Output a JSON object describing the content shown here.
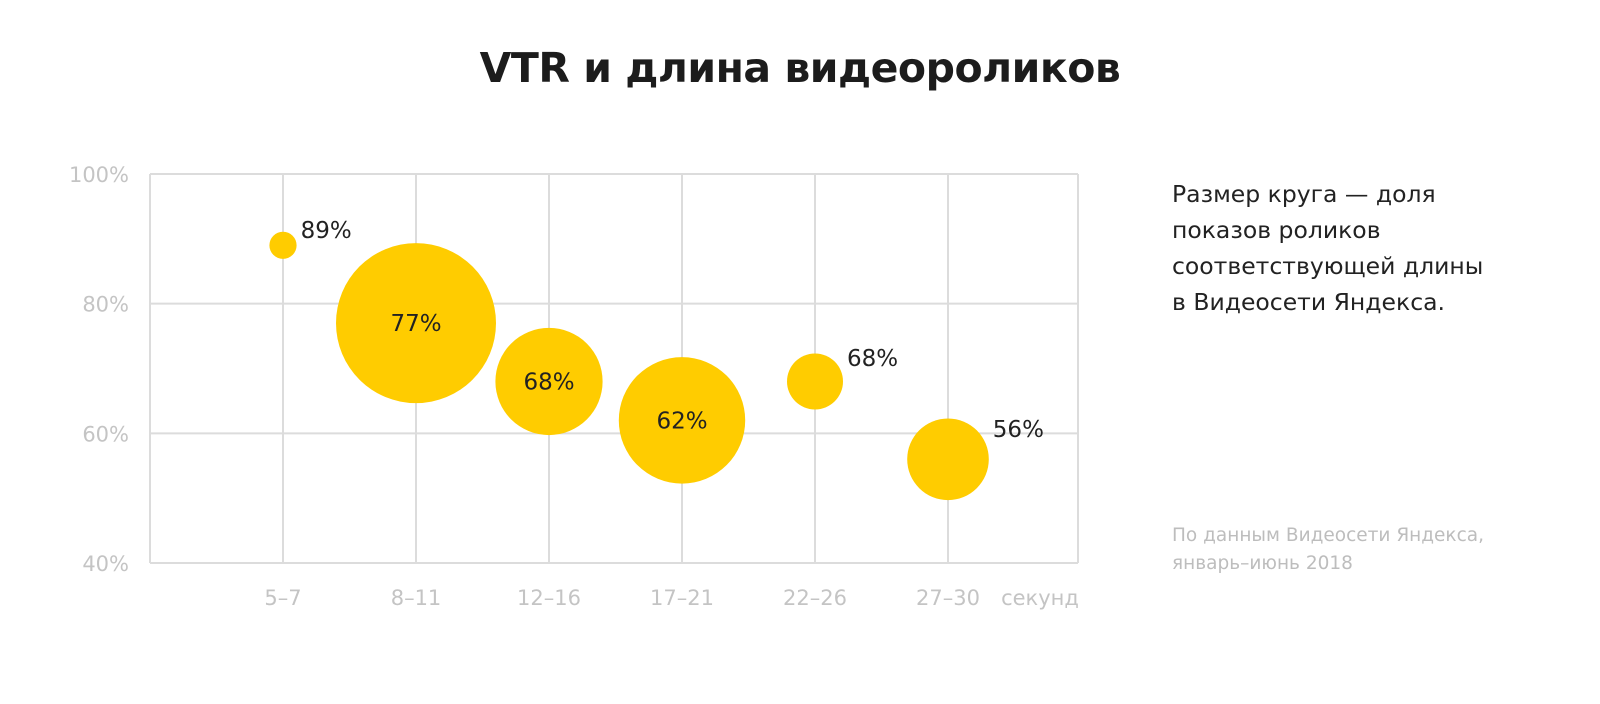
{
  "chart_data": {
    "type": "scatter",
    "title": "VTR и длина видеороликов",
    "categories": [
      "5–7",
      "8–11",
      "12–16",
      "17–21",
      "22–26",
      "27–30"
    ],
    "x_unit_label": "секунд",
    "values": [
      89,
      77,
      68,
      62,
      68,
      56
    ],
    "data_labels": [
      "89%",
      "77%",
      "68%",
      "62%",
      "68%",
      "56%"
    ],
    "bubble_size_relative": [
      0.17,
      1.0,
      0.67,
      0.79,
      0.35,
      0.51
    ],
    "ylim": [
      40,
      100
    ],
    "yticks": [
      40,
      60,
      80,
      100
    ],
    "ytick_labels": [
      "40%",
      "60%",
      "80%",
      "100%"
    ],
    "grid": true,
    "color": "#FFCC00"
  },
  "note": {
    "lines": [
      "Размер круга — доля",
      "показов роликов",
      "соответствующей длины",
      "в Видеосети Яндекса."
    ]
  },
  "source": {
    "lines": [
      "По данным Видеосети Яндекса,",
      "январь–июнь 2018"
    ]
  }
}
